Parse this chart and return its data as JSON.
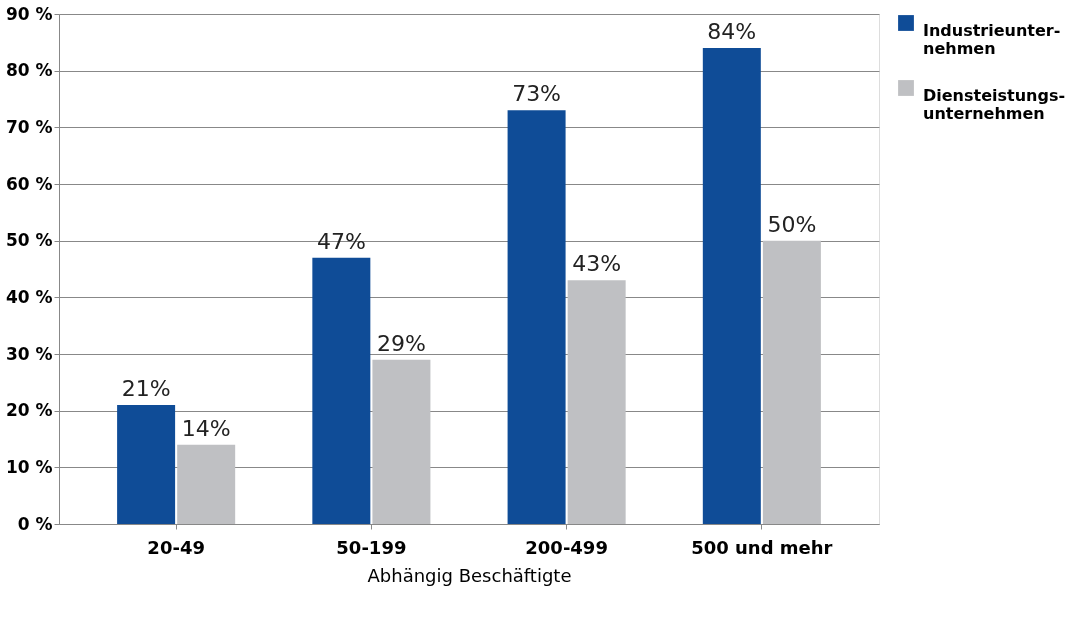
{
  "chart_data": {
    "type": "bar",
    "xlabel": "Abhängig Beschäftigte",
    "categories": [
      "20-49",
      "50-199",
      "200-499",
      "500 und mehr"
    ],
    "series": [
      {
        "name": "Industrieunter-\nnehmen",
        "color": "#0f4c97",
        "values": [
          21,
          47,
          73,
          84
        ],
        "value_labels": [
          "21%",
          "47%",
          "73%",
          "84%"
        ]
      },
      {
        "name": "Diensteistungs-\nunternehmen",
        "color": "#bfc0c3",
        "values": [
          14,
          29,
          43,
          50
        ],
        "value_labels": [
          "14%",
          "29%",
          "43%",
          "50%"
        ]
      }
    ],
    "ylim": [
      0,
      90
    ],
    "yticks": [
      {
        "value": 0,
        "label": "0 %"
      },
      {
        "value": 10,
        "label": "10 %"
      },
      {
        "value": 20,
        "label": "20 %"
      },
      {
        "value": 30,
        "label": "30 %"
      },
      {
        "value": 40,
        "label": "40 %"
      },
      {
        "value": 50,
        "label": "50 %"
      },
      {
        "value": 60,
        "label": "60 %"
      },
      {
        "value": 70,
        "label": "70 %"
      },
      {
        "value": 80,
        "label": "80 %"
      },
      {
        "value": 90,
        "label": "90 %"
      }
    ],
    "grid": "y",
    "legend": "right"
  }
}
